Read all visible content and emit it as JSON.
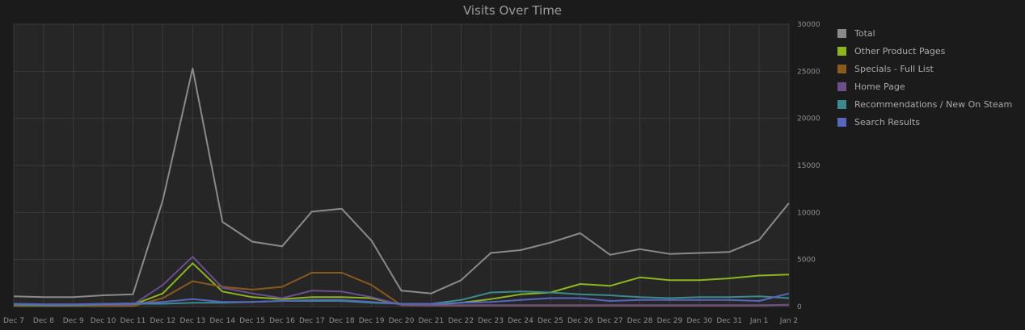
{
  "chart_data": {
    "type": "line",
    "title": "Visits Over Time",
    "x": [
      "Dec 7",
      "Dec 8",
      "Dec 9",
      "Dec 10",
      "Dec 11",
      "Dec 12",
      "Dec 13",
      "Dec 14",
      "Dec 15",
      "Dec 16",
      "Dec 17",
      "Dec 18",
      "Dec 19",
      "Dec 20",
      "Dec 21",
      "Dec 22",
      "Dec 23",
      "Dec 24",
      "Dec 25",
      "Dec 26",
      "Dec 27",
      "Dec 28",
      "Dec 29",
      "Dec 30",
      "Dec 31",
      "Jan 1",
      "Jan 2"
    ],
    "ylim": [
      0,
      30000
    ],
    "yticks": [
      0,
      5000,
      10000,
      15000,
      20000,
      25000,
      30000
    ],
    "grid": true,
    "legend_position": "right",
    "series": [
      {
        "name": "Total",
        "color": "#8a8a8a",
        "values": [
          1100,
          1000,
          1000,
          1200,
          1300,
          11300,
          25300,
          9000,
          6900,
          6400,
          10100,
          10400,
          7000,
          1700,
          1400,
          2800,
          5700,
          6000,
          6800,
          7800,
          5500,
          6100,
          5600,
          5700,
          5800,
          7100,
          11000
        ]
      },
      {
        "name": "Other Product Pages",
        "color": "#8db51e",
        "values": [
          150,
          100,
          100,
          150,
          200,
          1400,
          4600,
          1600,
          1000,
          800,
          1000,
          1000,
          900,
          200,
          200,
          400,
          800,
          1300,
          1500,
          2400,
          2200,
          3100,
          2800,
          2800,
          3000,
          3300,
          3400
        ]
      },
      {
        "name": "Specials - Full List",
        "color": "#8a5a1c",
        "values": [
          50,
          50,
          50,
          50,
          50,
          900,
          2700,
          2100,
          1800,
          2100,
          3600,
          3600,
          2300,
          150,
          100,
          100,
          100,
          100,
          100,
          100,
          100,
          100,
          100,
          100,
          100,
          100,
          200
        ]
      },
      {
        "name": "Home Page",
        "color": "#6b4f8d",
        "values": [
          200,
          150,
          150,
          200,
          200,
          2300,
          5300,
          2000,
          1400,
          900,
          1700,
          1600,
          1000,
          200,
          150,
          150,
          150,
          150,
          150,
          150,
          150,
          150,
          150,
          150,
          150,
          150,
          200
        ]
      },
      {
        "name": "Recommendations / New On Steam",
        "color": "#3c8a8e",
        "values": [
          200,
          150,
          150,
          250,
          300,
          300,
          400,
          400,
          500,
          600,
          600,
          600,
          400,
          300,
          300,
          700,
          1500,
          1600,
          1500,
          1300,
          1200,
          1000,
          900,
          1000,
          1000,
          1100,
          900
        ]
      },
      {
        "name": "Search Results",
        "color": "#5667bd",
        "values": [
          300,
          250,
          250,
          300,
          350,
          500,
          800,
          500,
          500,
          600,
          700,
          700,
          500,
          300,
          300,
          400,
          500,
          700,
          900,
          900,
          600,
          700,
          700,
          700,
          700,
          600,
          1400
        ]
      }
    ]
  }
}
